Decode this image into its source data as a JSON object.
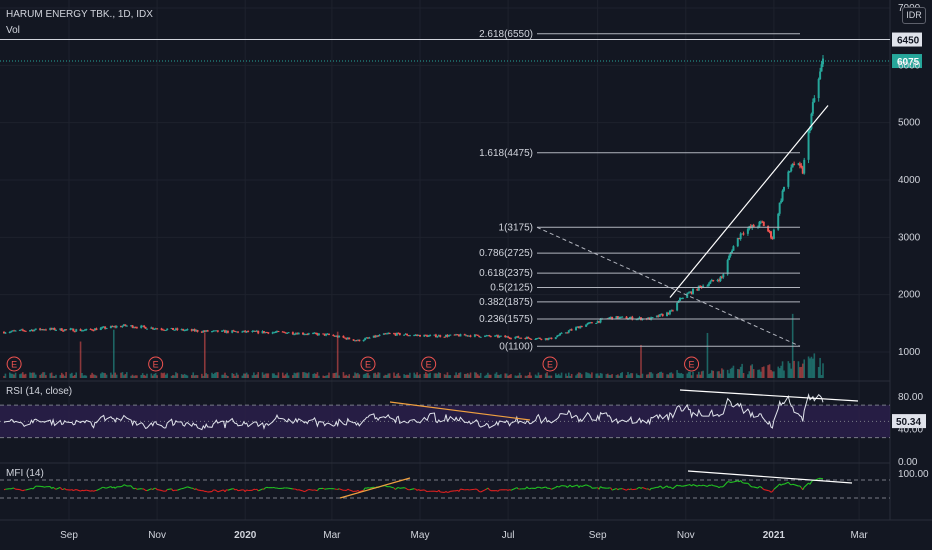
{
  "header": {
    "title": "HARUM ENERGY TBK., 1D, IDX",
    "volume_label": "Vol",
    "currency": "IDR"
  },
  "rsi_panel": {
    "label": "RSI (14, close)",
    "axis_ticks": [
      "80.00",
      "40.00",
      "0.00"
    ],
    "value": "50.34"
  },
  "mfi_panel": {
    "label": "MFI (14)",
    "axis_ticks": [
      "100.00"
    ]
  },
  "price_tags": {
    "high": "6450",
    "last": "6075"
  },
  "earnings_marker": "E",
  "colors": {
    "background": "#131722",
    "up": "#26a69a",
    "down": "#ef5350",
    "rsi_band": "#2a1f4a",
    "mfi_up": "#22c322",
    "mfi_down": "#e0201f",
    "trend_orange": "#f0a040",
    "text": "#d1d4dc"
  },
  "chart_data": {
    "type": "candlestick",
    "x_axis": {
      "ticks": [
        "Sep",
        "Nov",
        "2020",
        "Mar",
        "May",
        "Jul",
        "Sep",
        "Nov",
        "2021",
        "Mar"
      ]
    },
    "y_axis": {
      "ticks": [
        1000,
        2000,
        3000,
        4000,
        5000,
        6000,
        7000
      ],
      "range": [
        700,
        7000
      ],
      "tick_labels": [
        "1000",
        "2000",
        "3000",
        "4000",
        "5000",
        "6000",
        "7000"
      ]
    },
    "price_path": [
      {
        "date": "2019-07-18",
        "close": 1350
      },
      {
        "date": "2019-08-15",
        "close": 1400
      },
      {
        "date": "2019-09-12",
        "close": 1380
      },
      {
        "date": "2019-10-10",
        "close": 1460
      },
      {
        "date": "2019-11-07",
        "close": 1400
      },
      {
        "date": "2019-12-05",
        "close": 1360
      },
      {
        "date": "2020-01-02",
        "close": 1350
      },
      {
        "date": "2020-01-30",
        "close": 1340
      },
      {
        "date": "2020-02-27",
        "close": 1300
      },
      {
        "date": "2020-03-19",
        "close": 1200
      },
      {
        "date": "2020-04-09",
        "close": 1320
      },
      {
        "date": "2020-05-07",
        "close": 1280
      },
      {
        "date": "2020-06-04",
        "close": 1290
      },
      {
        "date": "2020-07-02",
        "close": 1260
      },
      {
        "date": "2020-07-30",
        "close": 1230
      },
      {
        "date": "2020-08-20",
        "close": 1450
      },
      {
        "date": "2020-09-10",
        "close": 1600
      },
      {
        "date": "2020-10-08",
        "close": 1580
      },
      {
        "date": "2020-10-22",
        "close": 1700
      },
      {
        "date": "2020-10-29",
        "close": 1950
      },
      {
        "date": "2020-11-12",
        "close": 2150
      },
      {
        "date": "2020-11-26",
        "close": 2300
      },
      {
        "date": "2020-12-03",
        "close": 2800
      },
      {
        "date": "2020-12-10",
        "close": 3100
      },
      {
        "date": "2020-12-24",
        "close": 3250
      },
      {
        "date": "2020-12-31",
        "close": 3000
      },
      {
        "date": "2021-01-07",
        "close": 3800
      },
      {
        "date": "2021-01-14",
        "close": 4300
      },
      {
        "date": "2021-01-21",
        "close": 4150
      },
      {
        "date": "2021-01-28",
        "close": 5300
      },
      {
        "date": "2021-02-04",
        "close": 6075
      }
    ],
    "fibonacci_levels": [
      {
        "label": "0(1100)",
        "value": 1100
      },
      {
        "label": "0.236(1575)",
        "value": 1575
      },
      {
        "label": "0.382(1875)",
        "value": 1875
      },
      {
        "label": "0.5(2125)",
        "value": 2125
      },
      {
        "label": "0.618(2375)",
        "value": 2375
      },
      {
        "label": "0.786(2725)",
        "value": 2725
      },
      {
        "label": "1(3175)",
        "value": 3175
      },
      {
        "label": "1.618(4475)",
        "value": 4475
      },
      {
        "label": "2.618(6550)",
        "value": 6550
      }
    ],
    "high": 6450,
    "last": 6075,
    "earnings_markers": [
      "2019-07-25",
      "2019-10-31",
      "2020-03-26",
      "2020-05-07",
      "2020-07-30",
      "2020-11-05"
    ],
    "rsi": {
      "last": 50.34,
      "overbought": 70,
      "oversold": 30,
      "range": [
        0,
        100
      ]
    },
    "mfi": {
      "upper": 80,
      "lower": 20,
      "range": [
        0,
        100
      ]
    }
  }
}
